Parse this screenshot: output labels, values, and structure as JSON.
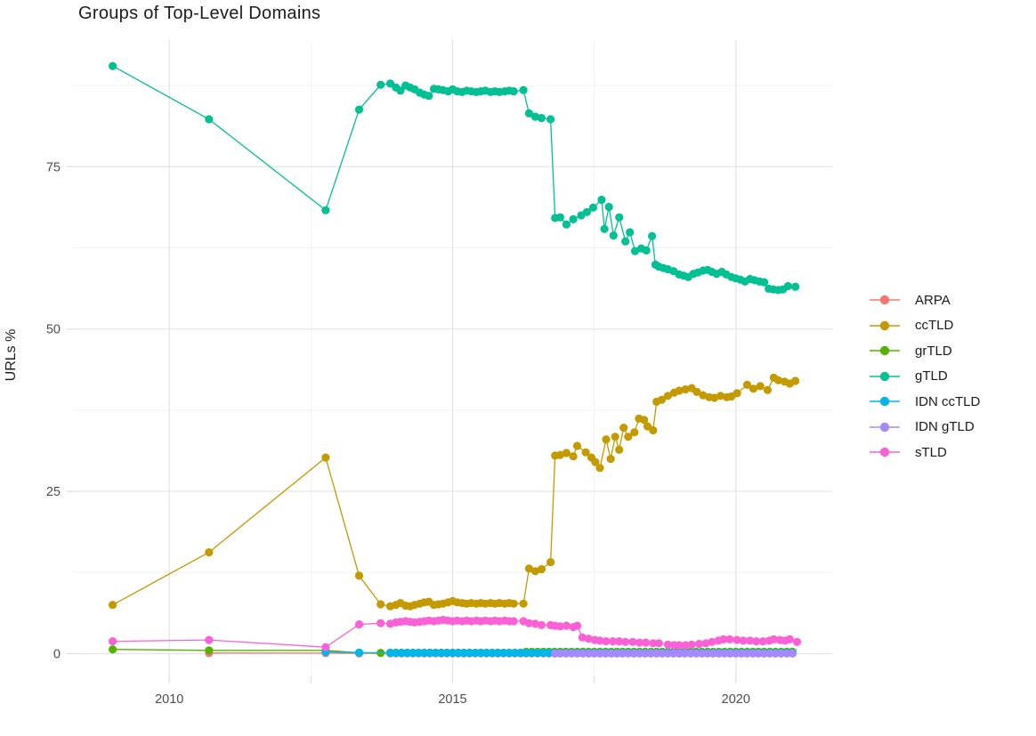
{
  "chart_data": {
    "type": "line",
    "title": "Groups of Top-Level Domains",
    "xlabel": "",
    "ylabel": "URLs %",
    "xlim": [
      2008.3,
      2021.7
    ],
    "ylim": [
      -3.5,
      94.5
    ],
    "grid": true,
    "legend_position": "right",
    "x_ticks": {
      "major": [
        2010,
        2015,
        2020
      ],
      "minor": [
        2012.5,
        2017.5
      ],
      "labels": [
        "2010",
        "2015",
        "2020"
      ]
    },
    "y_ticks": {
      "major": [
        0,
        25,
        50,
        75
      ],
      "minor": [
        12.5,
        37.5,
        62.5,
        87.5
      ],
      "labels": [
        "0",
        "25",
        "50",
        "75"
      ]
    },
    "series": [
      {
        "name": "ARPA",
        "color": "#F8766D",
        "points": [
          [
            2010.7,
            0.1
          ],
          [
            2012.76,
            0.08
          ],
          [
            2013.35,
            0.05
          ],
          [
            2013.9,
            0.05
          ]
        ],
        "runs": [
          {
            "from": 2014.0,
            "to": 2021.0,
            "step": 0.1,
            "value": 0.05
          }
        ]
      },
      {
        "name": "ccTLD",
        "color": "#C49A00",
        "points": [
          [
            2009.0,
            7.5
          ],
          [
            2010.7,
            15.6
          ],
          [
            2012.76,
            30.2
          ],
          [
            2013.35,
            12.0
          ],
          [
            2013.73,
            7.6
          ],
          [
            2013.9,
            7.3
          ],
          [
            2014.0,
            7.5
          ],
          [
            2014.08,
            7.8
          ],
          [
            2014.17,
            7.4
          ],
          [
            2014.25,
            7.3
          ],
          [
            2014.33,
            7.5
          ],
          [
            2014.42,
            7.7
          ],
          [
            2014.5,
            7.9
          ],
          [
            2014.58,
            8.0
          ],
          [
            2014.67,
            7.5
          ],
          [
            2014.75,
            7.6
          ],
          [
            2014.83,
            7.7
          ],
          [
            2014.92,
            7.9
          ],
          [
            2015.0,
            8.1
          ],
          [
            2015.08,
            7.9
          ],
          [
            2015.17,
            7.8
          ],
          [
            2015.25,
            7.7
          ],
          [
            2015.33,
            7.8
          ],
          [
            2015.42,
            7.7
          ],
          [
            2015.5,
            7.8
          ],
          [
            2015.58,
            7.7
          ],
          [
            2015.67,
            7.8
          ],
          [
            2015.75,
            7.7
          ],
          [
            2015.83,
            7.8
          ],
          [
            2015.92,
            7.7
          ],
          [
            2016.0,
            7.8
          ],
          [
            2016.08,
            7.7
          ],
          [
            2016.25,
            7.7
          ],
          [
            2016.35,
            13.1
          ],
          [
            2016.46,
            12.7
          ],
          [
            2016.57,
            13.0
          ],
          [
            2016.73,
            14.1
          ],
          [
            2016.81,
            30.5
          ],
          [
            2016.9,
            30.6
          ],
          [
            2017.01,
            30.9
          ],
          [
            2017.13,
            30.4
          ],
          [
            2017.2,
            32.0
          ],
          [
            2017.35,
            31.0
          ],
          [
            2017.45,
            30.2
          ],
          [
            2017.52,
            29.5
          ],
          [
            2017.6,
            28.6
          ],
          [
            2017.71,
            33.0
          ],
          [
            2017.79,
            30.0
          ],
          [
            2017.87,
            33.4
          ],
          [
            2017.94,
            31.4
          ],
          [
            2018.02,
            34.8
          ],
          [
            2018.1,
            33.4
          ],
          [
            2018.21,
            34.1
          ],
          [
            2018.29,
            36.2
          ],
          [
            2018.38,
            36.0
          ],
          [
            2018.44,
            35.0
          ],
          [
            2018.54,
            34.4
          ],
          [
            2018.6,
            38.8
          ],
          [
            2018.69,
            39.1
          ],
          [
            2018.8,
            39.7
          ],
          [
            2018.91,
            40.2
          ],
          [
            2019.0,
            40.5
          ],
          [
            2019.11,
            40.7
          ],
          [
            2019.22,
            40.9
          ],
          [
            2019.31,
            40.3
          ],
          [
            2019.42,
            39.8
          ],
          [
            2019.53,
            39.5
          ],
          [
            2019.62,
            39.4
          ],
          [
            2019.73,
            39.7
          ],
          [
            2019.84,
            39.5
          ],
          [
            2019.92,
            39.6
          ],
          [
            2020.02,
            40.1
          ],
          [
            2020.2,
            41.4
          ],
          [
            2020.31,
            40.8
          ],
          [
            2020.43,
            41.2
          ],
          [
            2020.56,
            40.6
          ],
          [
            2020.67,
            42.5
          ],
          [
            2020.75,
            42.1
          ],
          [
            2020.86,
            41.9
          ],
          [
            2020.95,
            41.6
          ],
          [
            2021.05,
            42.0
          ]
        ],
        "runs": []
      },
      {
        "name": "grTLD",
        "color": "#53B400",
        "points": [
          [
            2009.0,
            0.65
          ],
          [
            2010.7,
            0.5
          ],
          [
            2012.76,
            0.5
          ],
          [
            2013.35,
            0.15
          ],
          [
            2013.73,
            0.12
          ],
          [
            2013.9,
            0.15
          ]
        ],
        "runs": [
          {
            "from": 2014.0,
            "to": 2016.2,
            "step": 0.1,
            "value": 0.15
          },
          {
            "from": 2016.3,
            "to": 2021.0,
            "step": 0.1,
            "value": 0.3
          }
        ]
      },
      {
        "name": "gTLD",
        "color": "#00C094",
        "points": [
          [
            2009.0,
            90.5
          ],
          [
            2010.7,
            82.3
          ],
          [
            2012.76,
            68.3
          ],
          [
            2013.35,
            83.8
          ],
          [
            2013.73,
            87.6
          ],
          [
            2013.9,
            87.8
          ],
          [
            2014.0,
            87.2
          ],
          [
            2014.08,
            86.7
          ],
          [
            2014.17,
            87.5
          ],
          [
            2014.25,
            87.2
          ],
          [
            2014.33,
            86.9
          ],
          [
            2014.42,
            86.4
          ],
          [
            2014.5,
            86.1
          ],
          [
            2014.58,
            85.9
          ],
          [
            2014.67,
            87.0
          ],
          [
            2014.75,
            86.9
          ],
          [
            2014.83,
            86.8
          ],
          [
            2014.92,
            86.6
          ],
          [
            2015.0,
            86.9
          ],
          [
            2015.08,
            86.6
          ],
          [
            2015.17,
            86.5
          ],
          [
            2015.25,
            86.7
          ],
          [
            2015.33,
            86.6
          ],
          [
            2015.42,
            86.5
          ],
          [
            2015.5,
            86.6
          ],
          [
            2015.58,
            86.7
          ],
          [
            2015.67,
            86.5
          ],
          [
            2015.75,
            86.6
          ],
          [
            2015.83,
            86.5
          ],
          [
            2015.92,
            86.6
          ],
          [
            2016.0,
            86.7
          ],
          [
            2016.08,
            86.6
          ],
          [
            2016.25,
            86.8
          ],
          [
            2016.35,
            83.2
          ],
          [
            2016.46,
            82.7
          ],
          [
            2016.57,
            82.5
          ],
          [
            2016.73,
            82.3
          ],
          [
            2016.81,
            67.1
          ],
          [
            2016.9,
            67.2
          ],
          [
            2017.01,
            66.1
          ],
          [
            2017.13,
            66.9
          ],
          [
            2017.27,
            67.5
          ],
          [
            2017.37,
            68.0
          ],
          [
            2017.48,
            68.7
          ],
          [
            2017.63,
            69.9
          ],
          [
            2017.68,
            65.4
          ],
          [
            2017.76,
            68.8
          ],
          [
            2017.84,
            64.4
          ],
          [
            2017.94,
            67.2
          ],
          [
            2018.05,
            63.5
          ],
          [
            2018.13,
            64.9
          ],
          [
            2018.22,
            62.0
          ],
          [
            2018.33,
            62.4
          ],
          [
            2018.42,
            62.1
          ],
          [
            2018.52,
            64.3
          ],
          [
            2018.58,
            59.9
          ],
          [
            2018.64,
            59.6
          ],
          [
            2018.72,
            59.4
          ],
          [
            2018.8,
            59.2
          ],
          [
            2018.9,
            58.9
          ],
          [
            2019.0,
            58.4
          ],
          [
            2019.08,
            58.2
          ],
          [
            2019.16,
            58.0
          ],
          [
            2019.25,
            58.5
          ],
          [
            2019.33,
            58.7
          ],
          [
            2019.42,
            59.0
          ],
          [
            2019.5,
            59.1
          ],
          [
            2019.58,
            58.8
          ],
          [
            2019.66,
            58.5
          ],
          [
            2019.75,
            58.8
          ],
          [
            2019.83,
            58.4
          ],
          [
            2019.92,
            58.0
          ],
          [
            2020.0,
            57.8
          ],
          [
            2020.08,
            57.6
          ],
          [
            2020.16,
            57.3
          ],
          [
            2020.25,
            57.7
          ],
          [
            2020.33,
            57.5
          ],
          [
            2020.42,
            57.3
          ],
          [
            2020.5,
            57.2
          ],
          [
            2020.58,
            56.2
          ],
          [
            2020.66,
            56.1
          ],
          [
            2020.75,
            56.0
          ],
          [
            2020.83,
            56.1
          ],
          [
            2020.92,
            56.6
          ],
          [
            2021.05,
            56.5
          ]
        ],
        "runs": []
      },
      {
        "name": "IDN ccTLD",
        "color": "#00B6EB",
        "points": [
          [
            2012.76,
            0.27
          ],
          [
            2013.35,
            0.15
          ],
          [
            2013.9,
            0.12
          ]
        ],
        "runs": [
          {
            "from": 2014.0,
            "to": 2021.0,
            "step": 0.1,
            "value": 0.12
          }
        ]
      },
      {
        "name": "IDN gTLD",
        "color": "#A58AFF",
        "points": [
          [
            2016.81,
            0.03
          ]
        ],
        "runs": [
          {
            "from": 2016.9,
            "to": 2021.0,
            "step": 0.1,
            "value": 0.03
          }
        ]
      },
      {
        "name": "sTLD",
        "color": "#FB61D7",
        "points": [
          [
            2009.0,
            1.9
          ],
          [
            2010.7,
            2.1
          ],
          [
            2012.76,
            1.0
          ],
          [
            2013.35,
            4.5
          ],
          [
            2013.73,
            4.7
          ],
          [
            2013.9,
            4.6
          ],
          [
            2014.0,
            4.8
          ],
          [
            2014.08,
            4.9
          ],
          [
            2014.17,
            5.0
          ],
          [
            2014.25,
            4.9
          ],
          [
            2014.33,
            4.8
          ],
          [
            2014.42,
            4.9
          ],
          [
            2014.5,
            5.0
          ],
          [
            2014.58,
            5.1
          ],
          [
            2014.67,
            5.0
          ],
          [
            2014.75,
            5.1
          ],
          [
            2014.83,
            5.2
          ],
          [
            2014.92,
            5.1
          ],
          [
            2015.0,
            5.0
          ],
          [
            2015.08,
            5.1
          ],
          [
            2015.17,
            5.0
          ],
          [
            2015.25,
            5.1
          ],
          [
            2015.33,
            5.0
          ],
          [
            2015.42,
            5.1
          ],
          [
            2015.5,
            5.0
          ],
          [
            2015.58,
            5.1
          ],
          [
            2015.67,
            5.0
          ],
          [
            2015.75,
            5.1
          ],
          [
            2015.83,
            5.0
          ],
          [
            2015.92,
            5.1
          ],
          [
            2016.0,
            5.0
          ],
          [
            2016.08,
            5.0
          ],
          [
            2016.25,
            5.0
          ],
          [
            2016.35,
            4.7
          ],
          [
            2016.46,
            4.6
          ],
          [
            2016.57,
            4.4
          ],
          [
            2016.73,
            4.4
          ],
          [
            2016.81,
            4.3
          ],
          [
            2016.9,
            4.2
          ],
          [
            2017.01,
            4.3
          ],
          [
            2017.13,
            4.1
          ],
          [
            2017.2,
            4.3
          ],
          [
            2017.29,
            2.5
          ],
          [
            2017.4,
            2.3
          ],
          [
            2017.51,
            2.1
          ],
          [
            2017.6,
            2.0
          ],
          [
            2017.71,
            1.9
          ],
          [
            2017.83,
            1.9
          ],
          [
            2017.94,
            1.9
          ],
          [
            2018.05,
            1.8
          ],
          [
            2018.18,
            1.8
          ],
          [
            2018.3,
            1.7
          ],
          [
            2018.41,
            1.7
          ],
          [
            2018.54,
            1.6
          ],
          [
            2018.64,
            1.6
          ],
          [
            2018.8,
            1.4
          ],
          [
            2018.91,
            1.3
          ],
          [
            2019.0,
            1.3
          ],
          [
            2019.11,
            1.3
          ],
          [
            2019.22,
            1.4
          ],
          [
            2019.35,
            1.5
          ],
          [
            2019.47,
            1.6
          ],
          [
            2019.58,
            1.8
          ],
          [
            2019.69,
            2.0
          ],
          [
            2019.78,
            2.2
          ],
          [
            2019.89,
            2.2
          ],
          [
            2020.02,
            2.1
          ],
          [
            2020.13,
            2.0
          ],
          [
            2020.25,
            2.0
          ],
          [
            2020.36,
            1.9
          ],
          [
            2020.48,
            1.9
          ],
          [
            2020.59,
            2.0
          ],
          [
            2020.67,
            2.2
          ],
          [
            2020.78,
            2.1
          ],
          [
            2020.87,
            2.0
          ],
          [
            2020.95,
            2.2
          ],
          [
            2021.08,
            1.8
          ]
        ],
        "runs": []
      }
    ]
  }
}
